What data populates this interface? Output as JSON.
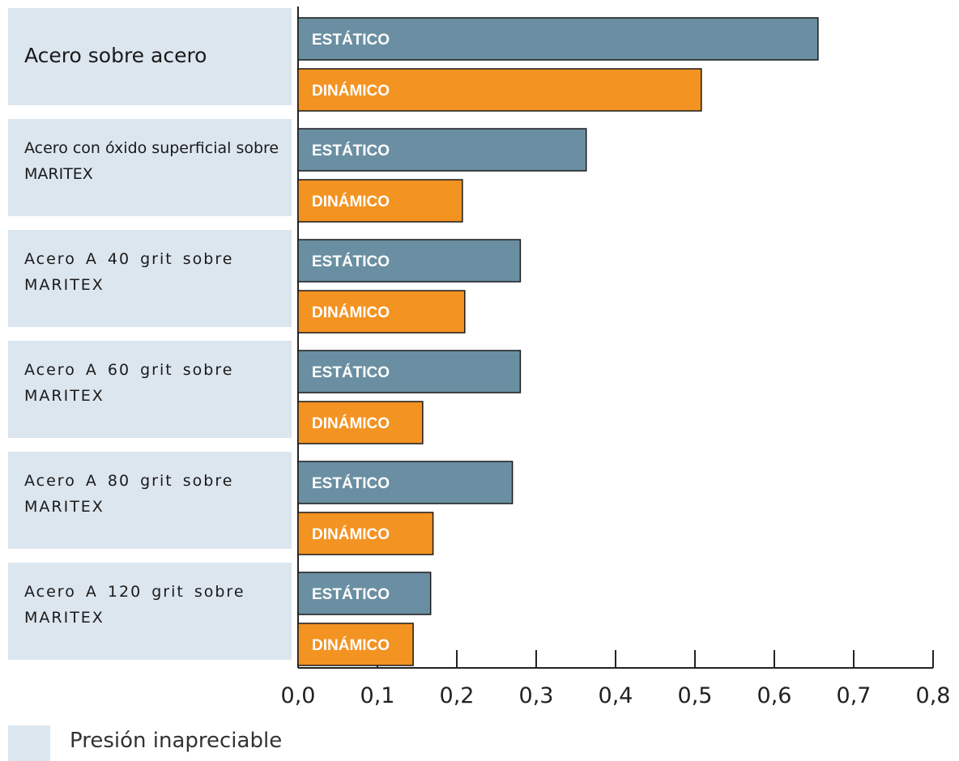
{
  "chart_data": {
    "type": "bar",
    "orientation": "horizontal",
    "categories": [
      "Acero sobre acero",
      "Acero con óxido superficial sobre MARITEX",
      "Acero A 40 grit sobre MARITEX",
      "Acero A 60 grit sobre MARITEX",
      "Acero A 80 grit sobre MARITEX",
      "Acero A 120 grit sobre MARITEX"
    ],
    "series": [
      {
        "name": "ESTÁTICO",
        "color": "#6b8fa2",
        "values": [
          0.655,
          0.363,
          0.28,
          0.28,
          0.27,
          0.167
        ]
      },
      {
        "name": "DINÁMICO",
        "color": "#f39322",
        "values": [
          0.508,
          0.207,
          0.21,
          0.157,
          0.17,
          0.145
        ]
      }
    ],
    "xlim": [
      0,
      0.8
    ],
    "xticks": [
      "0,0",
      "0,1",
      "0,2",
      "0,3",
      "0,4",
      "0,5",
      "0,6",
      "0,7",
      "0,8"
    ],
    "legend": [
      {
        "label": "Presión inapreciable",
        "color": "#dce6ef"
      }
    ],
    "xlabel": "",
    "ylabel": "",
    "title": ""
  }
}
